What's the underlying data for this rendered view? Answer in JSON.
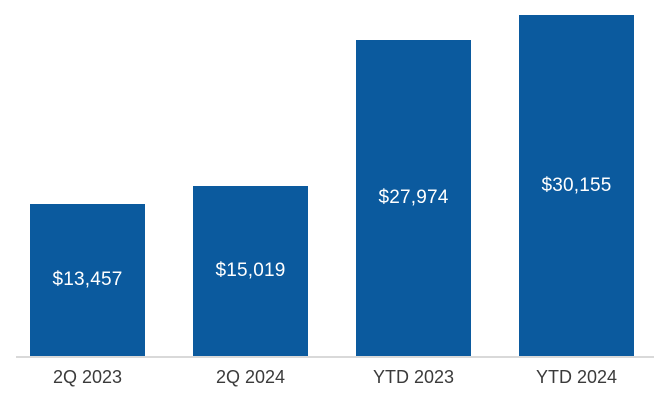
{
  "chart_data": {
    "type": "bar",
    "categories": [
      "2Q 2023",
      "2Q 2024",
      "YTD 2023",
      "YTD 2024"
    ],
    "values": [
      13457,
      15019,
      27974,
      30155
    ],
    "value_labels": [
      "$13,457",
      "$15,019",
      "$27,974",
      "$30,155"
    ],
    "title": "",
    "xlabel": "",
    "ylabel": "",
    "ylim": [
      0,
      30155
    ],
    "grid": "off",
    "legend": "none",
    "bar_color": "#0b5a9e",
    "value_label_color": "#ffffff",
    "axis_line_color": "#d9d9d9",
    "tick_label_color": "#3b3b3b"
  }
}
